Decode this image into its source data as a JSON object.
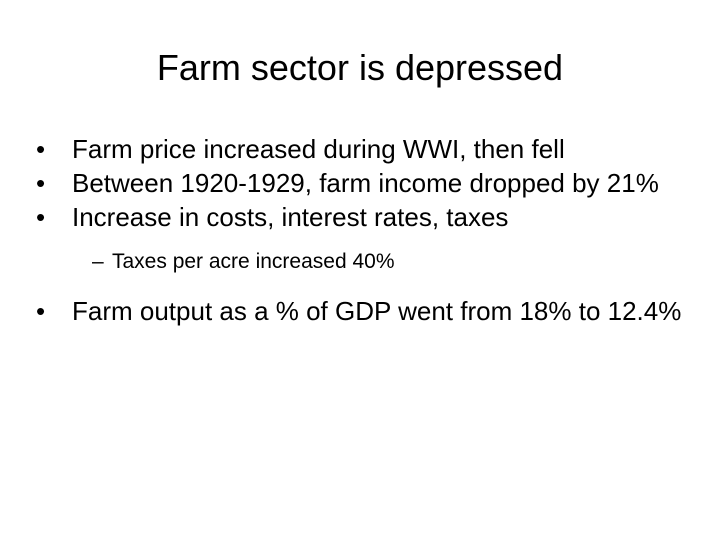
{
  "slide": {
    "title": "Farm sector is depressed",
    "bullets": [
      "Farm price increased during WWI, then fell",
      "Between 1920-1929, farm income dropped by 21%",
      "Increase in costs, interest rates, taxes",
      "Farm output as a % of GDP went from 18% to 12.4%"
    ],
    "sub_bullets": [
      "Taxes per acre increased 40%"
    ],
    "bullet_symbol": "•",
    "sub_bullet_symbol": "–"
  }
}
